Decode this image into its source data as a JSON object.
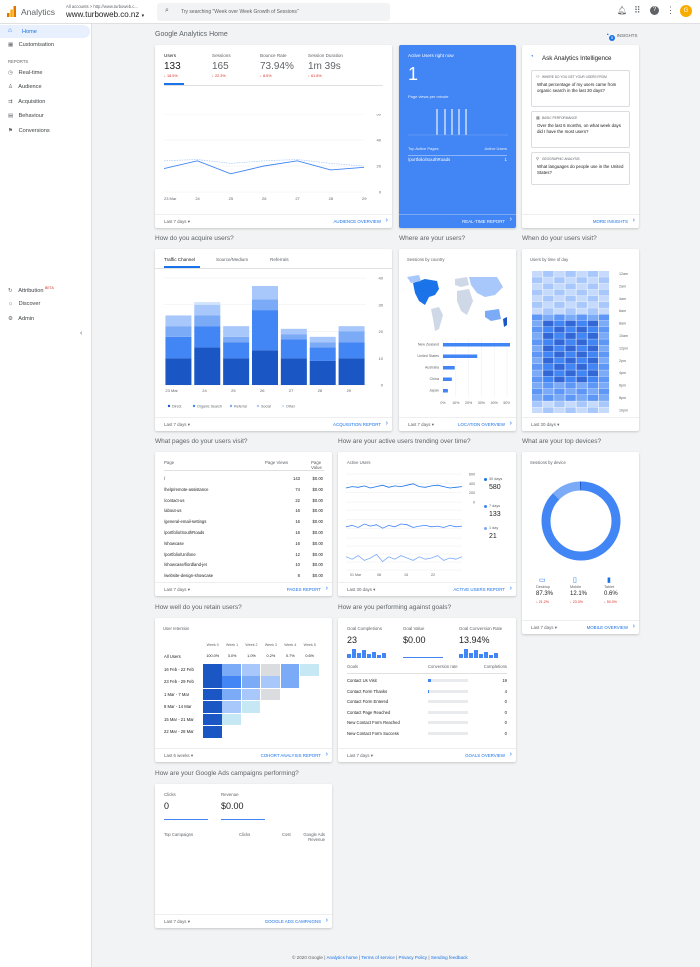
{
  "header": {
    "app_name": "Analytics",
    "account_path": "All accounts > http://www.turboweb.c...",
    "property": "www.turboweb.co.nz",
    "search_placeholder": "Try searching \"Week over Week Growth of Sessions\"",
    "avatar_letter": "G"
  },
  "sidebar": {
    "home": "Home",
    "customisation": "Customisation",
    "reports_heading": "REPORTS",
    "items": [
      "Real-time",
      "Audience",
      "Acquisition",
      "Behaviour",
      "Conversions"
    ],
    "attribution": "Attribution",
    "beta": "BETA",
    "discover": "Discover",
    "admin": "Admin"
  },
  "page": {
    "title": "Google Analytics Home",
    "insights": "INSIGHTS",
    "insights_count": "5"
  },
  "overview": {
    "metrics": [
      {
        "label": "Users",
        "value": "133",
        "change": "↓ 18.5%"
      },
      {
        "label": "Sessions",
        "value": "165",
        "change": "↓ 22.3%"
      },
      {
        "label": "Bounce Rate",
        "value": "73.94%",
        "change": "↓ 8.5%"
      },
      {
        "label": "Session Duration",
        "value": "1m 39s",
        "change": "↓ 61.8%"
      }
    ],
    "range": "Last 7 days",
    "link": "AUDIENCE OVERVIEW"
  },
  "overview_chart": {
    "type": "line",
    "x": [
      "23 Mar",
      "24",
      "25",
      "26",
      "27",
      "28",
      "29"
    ],
    "ylim": [
      0,
      60
    ],
    "yticks": [
      "60",
      "40",
      "20",
      "0"
    ],
    "series": [
      {
        "values": [
          18,
          24,
          14,
          20,
          24,
          17,
          19
        ]
      },
      {
        "values": [
          24,
          25,
          22,
          24,
          25,
          22,
          20
        ]
      }
    ]
  },
  "realtime": {
    "title": "Active Users right now",
    "value": "1",
    "subtitle": "Page views per minute",
    "top_pages": "Top Active Pages",
    "active_users": "Active Users",
    "page": "/portfolio/SouthRoads",
    "page_count": "1",
    "link": "REAL-TIME REPORT"
  },
  "ai": {
    "title": "Ask Analytics Intelligence",
    "cards": [
      {
        "tag": "WHERE DO YOU GET YOUR USERS FROM",
        "text": "What percentage of my users came from organic search in the last 30 days?"
      },
      {
        "tag": "BASIC PERFORMANCE",
        "text": "Over the last 6 months, on what week days did I have the most users?"
      },
      {
        "tag": "GEOGRAPHIC ANALYSIS",
        "text": "What languages do people use in the United States?"
      }
    ],
    "link": "MORE INSIGHTS"
  },
  "acquire": {
    "question": "How do you acquire users?",
    "tabs": [
      "Traffic Channel",
      "Source/Medium",
      "Referrals"
    ],
    "range": "Last 7 days",
    "link": "ACQUISITION REPORT"
  },
  "acq_chart": {
    "type": "bar",
    "categories": [
      "23 Mar",
      "24",
      "25",
      "26",
      "27",
      "28",
      "29"
    ],
    "ylim": [
      0,
      40
    ],
    "yticks": [
      "40",
      "30",
      "20",
      "10",
      "0"
    ],
    "series": [
      {
        "name": "Direct",
        "values": [
          10,
          14,
          10,
          13,
          10,
          9,
          10
        ]
      },
      {
        "name": "Organic Search",
        "values": [
          8,
          8,
          6,
          15,
          7,
          5,
          6
        ]
      },
      {
        "name": "Referral",
        "values": [
          4,
          4,
          2,
          4,
          2,
          2,
          4
        ]
      },
      {
        "name": "Social",
        "values": [
          4,
          4,
          4,
          5,
          2,
          2,
          2
        ]
      },
      {
        "name": "Other",
        "values": [
          0,
          1,
          0,
          0,
          0,
          0,
          0
        ]
      }
    ]
  },
  "where": {
    "question": "Where are your users?",
    "subtitle": "Sessions by country",
    "countries": [
      {
        "name": "New Zealand",
        "value": 70
      },
      {
        "name": "United States",
        "value": 35
      },
      {
        "name": "Australia",
        "value": 12
      },
      {
        "name": "China",
        "value": 9
      },
      {
        "name": "Japan",
        "value": 5
      }
    ],
    "xticks": [
      "0%",
      "10%",
      "20%",
      "30%",
      "40%",
      "50%"
    ],
    "range": "Last 7 days",
    "link": "LOCATION OVERVIEW"
  },
  "when": {
    "question": "When do your users visit?",
    "subtitle": "Users by time of day",
    "hours": [
      "12am",
      "2am",
      "4am",
      "6am",
      "8am",
      "10am",
      "12pm",
      "2pm",
      "4pm",
      "6pm",
      "8pm",
      "10pm"
    ],
    "days": [
      "Sun",
      "Mon",
      "Tue",
      "Wed",
      "Thu",
      "Fri",
      "Sat"
    ],
    "scale": [
      "0",
      "5",
      "10",
      "15",
      "20",
      "23"
    ],
    "range": "Last 30 days"
  },
  "pages": {
    "question": "What pages do your users visit?",
    "headers": [
      "Page",
      "Page Views",
      "Page Value"
    ],
    "rows": [
      [
        "/",
        "143",
        "$0.00"
      ],
      [
        "/help/remote-assistance",
        "74",
        "$0.00"
      ],
      [
        "/contact-us",
        "22",
        "$0.00"
      ],
      [
        "/about-us",
        "16",
        "$0.00"
      ],
      [
        "/general-email-settings",
        "16",
        "$0.00"
      ],
      [
        "/portfolio/SouthRoads",
        "16",
        "$0.00"
      ],
      [
        "/showcase",
        "16",
        "$0.00"
      ],
      [
        "/portfolio/Unifone",
        "12",
        "$0.00"
      ],
      [
        "/showcase/fiordland-jet",
        "10",
        "$0.00"
      ],
      [
        "/website-design-showcase",
        "8",
        "$0.00"
      ]
    ],
    "range": "Last 7 days",
    "link": "PAGES REPORT"
  },
  "active": {
    "question": "How are your active users trending over time?",
    "subtitle": "Active Users",
    "legend": [
      {
        "label": "30 days",
        "value": "580"
      },
      {
        "label": "7 days",
        "value": "133"
      },
      {
        "label": "1 day",
        "value": "21"
      }
    ],
    "yticks": [
      "600",
      "400",
      "200",
      "0"
    ],
    "xticks": [
      "01 Mar",
      "08",
      "15",
      "22"
    ],
    "range": "Last 30 days",
    "link": "ACTIVE USERS REPORT"
  },
  "devices": {
    "question": "What are your top devices?",
    "subtitle": "Sessions by device",
    "items": [
      {
        "label": "Desktop",
        "value": "87.3%",
        "change": "↓ 21.2%"
      },
      {
        "label": "Mobile",
        "value": "12.1%",
        "change": "↓ 23.3%"
      },
      {
        "label": "Tablet",
        "value": "0.6%",
        "change": "↓ 50.0%"
      }
    ],
    "range": "Last 7 days",
    "link": "MOBILE OVERVIEW"
  },
  "retention": {
    "question": "How well do you retain users?",
    "subtitle": "User retention",
    "weeks": [
      "Week 0",
      "Week 1",
      "Week 2",
      "Week 3",
      "Week 4",
      "Week 5"
    ],
    "all_label": "All Users",
    "all_values": [
      "100.0%",
      "3.0%",
      "1.0%",
      "0.2%",
      "0.7%",
      "0.6%"
    ],
    "rows": [
      "16 Feb - 22 Feb",
      "23 Feb - 29 Feb",
      "1 Mar - 7 Mar",
      "8 Mar - 14 Mar",
      "15 Mar - 21 Mar",
      "22 Mar - 28 Mar"
    ],
    "range": "Last 6 weeks",
    "link": "COHORT ANALYSIS REPORT"
  },
  "goals": {
    "question": "How are you performing against goals?",
    "metrics": [
      {
        "label": "Goal Completions",
        "value": "23"
      },
      {
        "label": "Goal Value",
        "value": "$0.00"
      },
      {
        "label": "Goal Conversion Rate",
        "value": "13.94%"
      }
    ],
    "headers": [
      "Goals",
      "Conversion rate",
      "Completions"
    ],
    "rows": [
      {
        "name": "Contact Us Visit",
        "rate": 0.08,
        "count": "19"
      },
      {
        "name": "Contact Form Thanks",
        "rate": 0.02,
        "count": "4"
      },
      {
        "name": "Contact Form Entered",
        "rate": 0,
        "count": "0"
      },
      {
        "name": "Contact Page Reached",
        "rate": 0,
        "count": "0"
      },
      {
        "name": "New Contact Form Reached",
        "rate": 0,
        "count": "0"
      },
      {
        "name": "New Contact Form Success",
        "rate": 0,
        "count": "0"
      }
    ],
    "range": "Last 7 days",
    "link": "GOALS OVERVIEW"
  },
  "ads": {
    "question": "How are your Google Ads campaigns performing?",
    "metrics": [
      {
        "label": "Clicks",
        "value": "0"
      },
      {
        "label": "Revenue",
        "value": "$0.00"
      }
    ],
    "headers": [
      "Top Campaigns",
      "Clicks",
      "Cost",
      "Google Ads Revenue"
    ],
    "range": "Last 7 days",
    "link": "GOOGLE ADS CAMPAIGNS"
  },
  "footer": {
    "copyright": "© 2020 Google",
    "links": [
      "Analytics home",
      "Terms of service",
      "Privacy Policy",
      "Sending feedback"
    ]
  },
  "colors": {
    "blue": "#1a73e8",
    "dark_blue": "#3367d6",
    "mid_blue": "#4285f4",
    "light_blue": "#7baaf7",
    "lighter_blue": "#a8c7fa",
    "teal": "#80deea",
    "red": "#d93025",
    "realtime_bg": "#4285f4"
  }
}
